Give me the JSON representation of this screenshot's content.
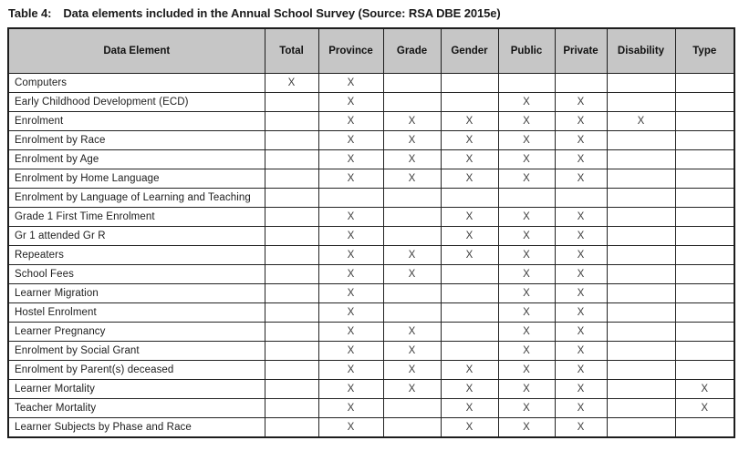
{
  "caption": {
    "label": "Table 4:",
    "text": "Data elements included in the Annual School Survey (Source: RSA DBE 2015e)"
  },
  "colors": {
    "header_bg": "#c6c6c6",
    "border": "#1d1d1d",
    "text": "#1a1a1a",
    "page_bg": "#ffffff"
  },
  "table": {
    "columns": [
      "Data Element",
      "Total",
      "Province",
      "Grade",
      "Gender",
      "Public",
      "Private",
      "Disability",
      "Type"
    ],
    "mark_symbol": "X",
    "rows": [
      {
        "label": "Computers",
        "marks": [
          "X",
          "X",
          "",
          "",
          "",
          "",
          "",
          ""
        ]
      },
      {
        "label": "Early Childhood Development (ECD)",
        "marks": [
          "",
          "X",
          "",
          "",
          "X",
          "X",
          "",
          ""
        ]
      },
      {
        "label": "Enrolment",
        "marks": [
          "",
          "X",
          "X",
          "X",
          "X",
          "X",
          "X",
          ""
        ]
      },
      {
        "label": "Enrolment by Race",
        "marks": [
          "",
          "X",
          "X",
          "X",
          "X",
          "X",
          "",
          ""
        ]
      },
      {
        "label": "Enrolment by Age",
        "marks": [
          "",
          "X",
          "X",
          "X",
          "X",
          "X",
          "",
          ""
        ]
      },
      {
        "label": "Enrolment by Home Language",
        "marks": [
          "",
          "X",
          "X",
          "X",
          "X",
          "X",
          "",
          ""
        ]
      },
      {
        "label": "Enrolment by Language of Learning and Teaching",
        "marks": [
          "",
          "",
          "",
          "",
          "",
          "",
          "",
          ""
        ]
      },
      {
        "label": "Grade 1 First Time Enrolment",
        "marks": [
          "",
          "X",
          "",
          "X",
          "X",
          "X",
          "",
          ""
        ]
      },
      {
        "label": "Gr 1 attended Gr R",
        "marks": [
          "",
          "X",
          "",
          "X",
          "X",
          "X",
          "",
          ""
        ]
      },
      {
        "label": "Repeaters",
        "marks": [
          "",
          "X",
          "X",
          "X",
          "X",
          "X",
          "",
          ""
        ]
      },
      {
        "label": "School Fees",
        "marks": [
          "",
          "X",
          "X",
          "",
          "X",
          "X",
          "",
          ""
        ]
      },
      {
        "label": "Learner Migration",
        "marks": [
          "",
          "X",
          "",
          "",
          "X",
          "X",
          "",
          ""
        ]
      },
      {
        "label": "Hostel Enrolment",
        "marks": [
          "",
          "X",
          "",
          "",
          "X",
          "X",
          "",
          ""
        ]
      },
      {
        "label": "Learner Pregnancy",
        "marks": [
          "",
          "X",
          "X",
          "",
          "X",
          "X",
          "",
          ""
        ]
      },
      {
        "label": "Enrolment by Social Grant",
        "marks": [
          "",
          "X",
          "X",
          "",
          "X",
          "X",
          "",
          ""
        ]
      },
      {
        "label": "Enrolment by Parent(s) deceased",
        "marks": [
          "",
          "X",
          "X",
          "X",
          "X",
          "X",
          "",
          ""
        ]
      },
      {
        "label": "Learner Mortality",
        "marks": [
          "",
          "X",
          "X",
          "X",
          "X",
          "X",
          "",
          "X"
        ]
      },
      {
        "label": "Teacher Mortality",
        "marks": [
          "",
          "X",
          "",
          "X",
          "X",
          "X",
          "",
          "X"
        ]
      },
      {
        "label": "Learner Subjects by Phase and Race",
        "marks": [
          "",
          "X",
          "",
          "X",
          "X",
          "X",
          "",
          ""
        ]
      }
    ]
  }
}
